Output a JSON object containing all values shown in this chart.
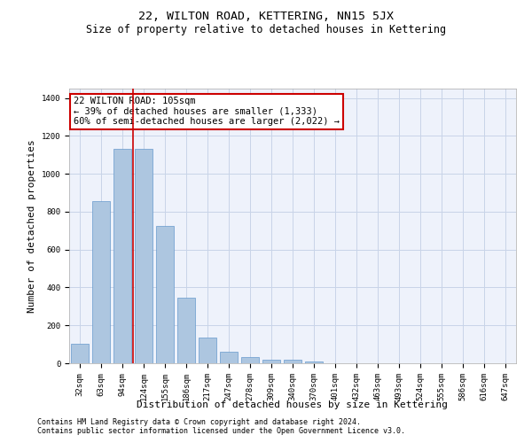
{
  "title": "22, WILTON ROAD, KETTERING, NN15 5JX",
  "subtitle": "Size of property relative to detached houses in Kettering",
  "xlabel": "Distribution of detached houses by size in Kettering",
  "ylabel": "Number of detached properties",
  "categories": [
    "32sqm",
    "63sqm",
    "94sqm",
    "124sqm",
    "155sqm",
    "186sqm",
    "217sqm",
    "247sqm",
    "278sqm",
    "309sqm",
    "340sqm",
    "370sqm",
    "401sqm",
    "432sqm",
    "463sqm",
    "493sqm",
    "524sqm",
    "555sqm",
    "586sqm",
    "616sqm",
    "647sqm"
  ],
  "values": [
    105,
    855,
    1130,
    1130,
    725,
    345,
    135,
    60,
    35,
    20,
    18,
    10,
    0,
    0,
    0,
    0,
    0,
    0,
    0,
    0,
    0
  ],
  "bar_color": "#adc6e0",
  "bar_edge_color": "#6699cc",
  "vline_x": 2.5,
  "vline_color": "#cc0000",
  "annotation_text": "22 WILTON ROAD: 105sqm\n← 39% of detached houses are smaller (1,333)\n60% of semi-detached houses are larger (2,022) →",
  "annotation_box_color": "#cc0000",
  "ylim": [
    0,
    1450
  ],
  "yticks": [
    0,
    200,
    400,
    600,
    800,
    1000,
    1200,
    1400
  ],
  "grid_color": "#c8d4e8",
  "bg_color": "#eef2fb",
  "footer1": "Contains HM Land Registry data © Crown copyright and database right 2024.",
  "footer2": "Contains public sector information licensed under the Open Government Licence v3.0.",
  "title_fontsize": 9.5,
  "subtitle_fontsize": 8.5,
  "xlabel_fontsize": 8,
  "ylabel_fontsize": 8,
  "tick_fontsize": 6.5,
  "annotation_fontsize": 7.5,
  "footer_fontsize": 6
}
